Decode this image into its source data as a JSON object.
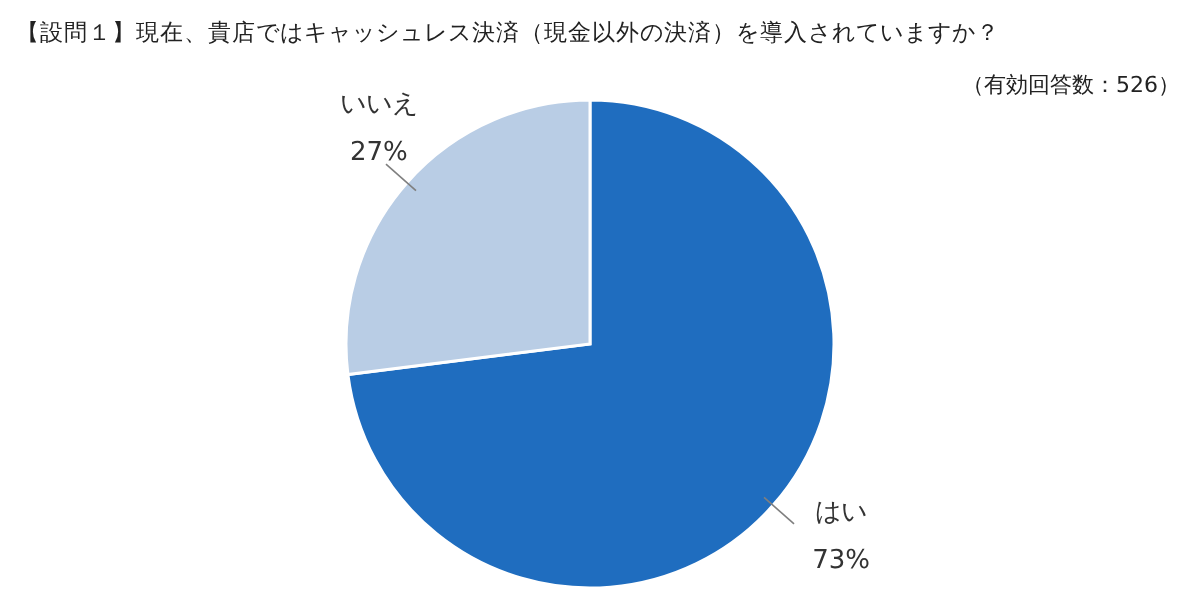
{
  "chart_data": {
    "type": "pie",
    "title": "【設問１】現在、貴店ではキャッシュレス決済（現金以外の決済）を導入されていますか？",
    "subtitle": "（有効回答数：526）",
    "categories": [
      "はい",
      "いいえ"
    ],
    "values": [
      73,
      27
    ],
    "value_labels": [
      "73%",
      "27%"
    ],
    "colors": [
      "#1f6dbf",
      "#b9cde5"
    ],
    "legend": false
  }
}
